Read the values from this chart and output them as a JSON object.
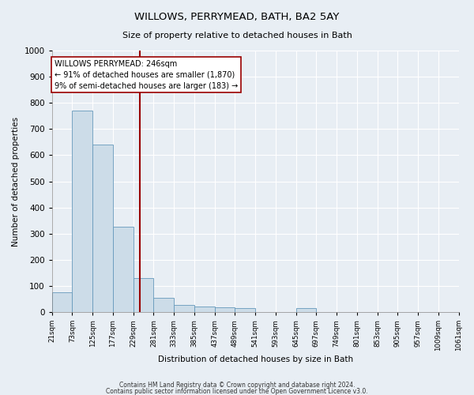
{
  "title": "WILLOWS, PERRYMEAD, BATH, BA2 5AY",
  "subtitle": "Size of property relative to detached houses in Bath",
  "xlabel": "Distribution of detached houses by size in Bath",
  "ylabel": "Number of detached properties",
  "footer_line1": "Contains HM Land Registry data © Crown copyright and database right 2024.",
  "footer_line2": "Contains public sector information licensed under the Open Government Licence v3.0.",
  "annotation_title": "WILLOWS PERRYMEAD: 246sqm",
  "annotation_line1": "← 91% of detached houses are smaller (1,870)",
  "annotation_line2": "9% of semi-detached houses are larger (183) →",
  "bar_color": "#ccdce8",
  "bar_edge_color": "#6699bb",
  "vline_color": "#990000",
  "vline_x_bin": 4,
  "annotation_box_facecolor": "#ffffff",
  "annotation_box_edgecolor": "#990000",
  "ylim": [
    0,
    1000
  ],
  "bins": [
    21,
    73,
    125,
    177,
    229,
    281,
    333,
    385,
    437,
    489,
    541,
    593,
    645,
    697,
    749,
    801,
    853,
    905,
    957,
    1009,
    1061
  ],
  "bin_labels": [
    "21sqm",
    "73sqm",
    "125sqm",
    "177sqm",
    "229sqm",
    "281sqm",
    "333sqm",
    "385sqm",
    "437sqm",
    "489sqm",
    "541sqm",
    "593sqm",
    "645sqm",
    "697sqm",
    "749sqm",
    "801sqm",
    "853sqm",
    "905sqm",
    "957sqm",
    "1009sqm",
    "1061sqm"
  ],
  "counts": [
    75,
    770,
    640,
    325,
    130,
    55,
    28,
    22,
    18,
    16,
    0,
    0,
    15,
    0,
    0,
    0,
    0,
    0,
    0,
    0
  ],
  "background_color": "#e8eef4",
  "plot_bg_color": "#e8eef4",
  "grid_color": "#ffffff",
  "figsize": [
    6.0,
    5.0
  ],
  "dpi": 100
}
